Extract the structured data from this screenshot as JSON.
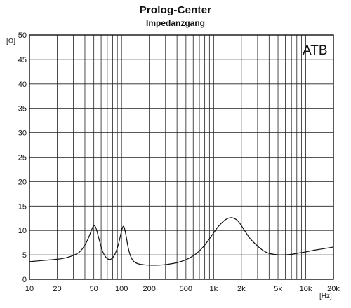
{
  "chart_data": {
    "type": "line",
    "title": "Prolog-Center",
    "subtitle": "Impedanzgang",
    "xlabel": "[Hz]",
    "ylabel": "[Ω]",
    "x_scale": "log",
    "xlim": [
      10,
      20000
    ],
    "ylim": [
      0,
      50
    ],
    "grid": true,
    "annotation": "ATB",
    "y_ticks": [
      0,
      5,
      10,
      15,
      20,
      25,
      30,
      35,
      40,
      45,
      50
    ],
    "x_ticks": [
      {
        "value": 10,
        "label": "10"
      },
      {
        "value": 20,
        "label": "20"
      },
      {
        "value": 50,
        "label": "50"
      },
      {
        "value": 100,
        "label": "100"
      },
      {
        "value": 200,
        "label": "200"
      },
      {
        "value": 500,
        "label": "500"
      },
      {
        "value": 1000,
        "label": "1k"
      },
      {
        "value": 2000,
        "label": "2k"
      },
      {
        "value": 5000,
        "label": "5k"
      },
      {
        "value": 10000,
        "label": "10k"
      },
      {
        "value": 20000,
        "label": "20k"
      }
    ],
    "series": [
      {
        "x": [
          10,
          15,
          20,
          25,
          30,
          35,
          40,
          44,
          47,
          50,
          53,
          57,
          62,
          67,
          72,
          78,
          85,
          92,
          98,
          103,
          107,
          112,
          118,
          125,
          135,
          150,
          170,
          200,
          250,
          300,
          400,
          500,
          600,
          700,
          800,
          900,
          1000,
          1100,
          1200,
          1300,
          1400,
          1500,
          1600,
          1700,
          1800,
          1900,
          2000,
          2200,
          2500,
          3000,
          3500,
          4000,
          5000,
          6000,
          7000,
          8000,
          10000,
          12000,
          15000,
          20000
        ],
        "y": [
          3.6,
          3.9,
          4.1,
          4.4,
          4.9,
          5.6,
          7.0,
          8.6,
          10.0,
          11.0,
          10.4,
          8.2,
          5.8,
          4.6,
          4.1,
          4.2,
          5.2,
          7.0,
          9.2,
          10.7,
          10.6,
          8.9,
          6.5,
          4.8,
          3.7,
          3.2,
          3.0,
          2.9,
          2.9,
          3.0,
          3.4,
          4.0,
          4.8,
          5.8,
          7.0,
          8.3,
          9.5,
          10.6,
          11.4,
          12.0,
          12.4,
          12.6,
          12.6,
          12.4,
          12.1,
          11.6,
          11.0,
          9.8,
          8.3,
          6.8,
          5.8,
          5.3,
          5.0,
          5.0,
          5.1,
          5.3,
          5.6,
          5.9,
          6.2,
          6.6
        ]
      }
    ]
  }
}
